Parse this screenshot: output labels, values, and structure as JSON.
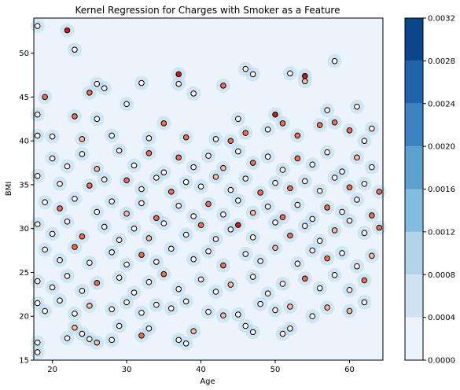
{
  "chart_data": {
    "type": "scatter",
    "title": "Kernel Regression for Charges with Smoker as a Feature",
    "xlabel": "Age",
    "ylabel": "BMI",
    "xlim": [
      17.5,
      64.5
    ],
    "ylim": [
      15,
      54
    ],
    "xticks": [
      "20",
      "30",
      "40",
      "50",
      "60"
    ],
    "yticks": [
      "15",
      "20",
      "25",
      "30",
      "35",
      "40",
      "45",
      "50"
    ],
    "grid": false,
    "colorbar": {
      "range": [
        0.0,
        0.0032
      ],
      "ticks": [
        "0.0000",
        "0.0004",
        "0.0008",
        "0.0012",
        "0.0016",
        "0.0020",
        "0.0024",
        "0.0028",
        "0.0032"
      ],
      "colors": [
        "#ebf3fc",
        "#d0e2f3",
        "#b1d4e9",
        "#83bcde",
        "#5da1d1",
        "#3a83c0",
        "#1e64aa",
        "#0b4689"
      ]
    },
    "background_color": "#ebf3fc",
    "point_colormap": [
      "#fff5f0",
      "#fcbba1",
      "#fb6a4a",
      "#cb181d"
    ],
    "series": [
      {
        "points": [
          [
            18,
            53.1,
            0.0
          ],
          [
            22,
            52.6,
            0.95
          ],
          [
            23,
            50.4,
            0.0
          ],
          [
            19,
            45.0,
            0.9
          ],
          [
            25,
            45.5,
            0.9
          ],
          [
            26,
            46.5,
            0.0
          ],
          [
            27,
            46.0,
            0.0
          ],
          [
            32,
            46.6,
            0.0
          ],
          [
            37,
            47.6,
            0.95
          ],
          [
            37,
            46.5,
            0.0
          ],
          [
            39,
            45.4,
            0.0
          ],
          [
            43,
            46.3,
            0.9
          ],
          [
            46,
            48.2,
            0.0
          ],
          [
            47,
            47.6,
            0.0
          ],
          [
            52,
            47.7,
            0.0
          ],
          [
            54,
            47.4,
            1.0
          ],
          [
            54,
            46.8,
            0.3
          ],
          [
            58,
            49.1,
            0.0
          ],
          [
            18,
            43.0,
            0.0
          ],
          [
            23,
            42.8,
            0.9
          ],
          [
            26,
            42.5,
            0.0
          ],
          [
            30,
            44.2,
            0.0
          ],
          [
            35,
            42.0,
            0.9
          ],
          [
            45,
            42.5,
            0.0
          ],
          [
            50,
            43.0,
            0.95
          ],
          [
            57,
            43.5,
            0.0
          ],
          [
            61,
            43.9,
            0.0
          ],
          [
            18,
            40.6,
            0.0
          ],
          [
            20,
            40.5,
            0.0
          ],
          [
            24,
            40.2,
            0.4
          ],
          [
            28,
            40.6,
            0.0
          ],
          [
            33,
            40.3,
            0.0
          ],
          [
            38,
            40.4,
            0.9
          ],
          [
            42,
            40.2,
            0.0
          ],
          [
            44,
            40.0,
            0.9
          ],
          [
            46,
            40.9,
            0.9
          ],
          [
            49,
            41.3,
            0.0
          ],
          [
            51,
            42.0,
            0.9
          ],
          [
            53,
            40.6,
            0.9
          ],
          [
            56,
            41.8,
            0.9
          ],
          [
            58,
            42.1,
            0.9
          ],
          [
            60,
            41.2,
            0.9
          ],
          [
            62,
            40.0,
            0.0
          ],
          [
            63,
            41.4,
            0.0
          ],
          [
            20,
            38.0,
            0.0
          ],
          [
            22,
            37.1,
            0.0
          ],
          [
            24,
            38.5,
            0.0
          ],
          [
            26,
            36.8,
            0.4
          ],
          [
            29,
            38.9,
            0.0
          ],
          [
            31,
            37.2,
            0.0
          ],
          [
            33,
            38.6,
            0.9
          ],
          [
            35,
            36.4,
            0.0
          ],
          [
            37,
            38.1,
            0.9
          ],
          [
            39,
            37.0,
            0.0
          ],
          [
            41,
            38.3,
            0.0
          ],
          [
            43,
            36.9,
            0.4
          ],
          [
            45,
            38.8,
            0.0
          ],
          [
            47,
            37.5,
            0.9
          ],
          [
            49,
            38.2,
            0.0
          ],
          [
            51,
            36.7,
            0.0
          ],
          [
            53,
            38.0,
            0.9
          ],
          [
            55,
            37.3,
            0.0
          ],
          [
            57,
            38.7,
            0.0
          ],
          [
            59,
            36.5,
            0.0
          ],
          [
            61,
            38.1,
            0.4
          ],
          [
            63,
            37.0,
            0.0
          ],
          [
            18,
            36.0,
            0.0
          ],
          [
            21,
            35.1,
            0.0
          ],
          [
            25,
            34.9,
            0.9
          ],
          [
            27,
            35.6,
            0.0
          ],
          [
            30,
            35.5,
            0.9
          ],
          [
            32,
            34.5,
            0.0
          ],
          [
            34,
            35.8,
            0.0
          ],
          [
            36,
            34.2,
            0.9
          ],
          [
            38,
            35.3,
            0.0
          ],
          [
            40,
            34.8,
            0.0
          ],
          [
            42,
            35.9,
            0.4
          ],
          [
            44,
            34.4,
            0.0
          ],
          [
            46,
            35.7,
            0.0
          ],
          [
            48,
            34.1,
            0.9
          ],
          [
            50,
            35.2,
            0.0
          ],
          [
            52,
            34.6,
            0.9
          ],
          [
            54,
            35.4,
            0.0
          ],
          [
            56,
            34.3,
            0.0
          ],
          [
            58,
            35.8,
            0.0
          ],
          [
            60,
            34.7,
            0.9
          ],
          [
            62,
            35.1,
            0.0
          ],
          [
            64,
            34.2,
            0.9
          ],
          [
            19,
            33.0,
            0.0
          ],
          [
            21,
            32.3,
            0.9
          ],
          [
            23,
            33.4,
            0.0
          ],
          [
            26,
            31.9,
            0.0
          ],
          [
            28,
            33.1,
            0.0
          ],
          [
            30,
            31.7,
            0.4
          ],
          [
            32,
            32.9,
            0.0
          ],
          [
            34,
            31.2,
            0.9
          ],
          [
            37,
            32.6,
            0.0
          ],
          [
            39,
            31.4,
            0.0
          ],
          [
            41,
            32.8,
            0.9
          ],
          [
            43,
            31.6,
            0.0
          ],
          [
            45,
            33.2,
            0.0
          ],
          [
            47,
            31.8,
            0.4
          ],
          [
            49,
            32.5,
            0.0
          ],
          [
            51,
            31.3,
            0.9
          ],
          [
            53,
            32.7,
            0.0
          ],
          [
            55,
            31.1,
            0.0
          ],
          [
            57,
            32.4,
            0.9
          ],
          [
            59,
            31.9,
            0.0
          ],
          [
            61,
            33.3,
            0.0
          ],
          [
            63,
            31.5,
            0.9
          ],
          [
            18,
            30.5,
            0.0
          ],
          [
            20,
            29.4,
            0.0
          ],
          [
            22,
            30.8,
            0.0
          ],
          [
            24,
            29.1,
            0.9
          ],
          [
            27,
            30.2,
            0.0
          ],
          [
            29,
            28.7,
            0.0
          ],
          [
            31,
            30.0,
            0.0
          ],
          [
            33,
            28.9,
            0.4
          ],
          [
            35,
            30.6,
            0.0
          ],
          [
            38,
            29.3,
            0.0
          ],
          [
            40,
            30.4,
            0.9
          ],
          [
            42,
            28.8,
            0.0
          ],
          [
            44,
            29.9,
            0.0
          ],
          [
            45,
            30.4,
            1.0
          ],
          [
            47,
            29.0,
            0.0
          ],
          [
            50,
            30.7,
            0.0
          ],
          [
            52,
            29.2,
            0.9
          ],
          [
            54,
            30.3,
            0.0
          ],
          [
            56,
            28.6,
            0.0
          ],
          [
            58,
            29.8,
            0.4
          ],
          [
            60,
            30.9,
            0.0
          ],
          [
            62,
            29.5,
            0.0
          ],
          [
            64,
            30.1,
            0.9
          ],
          [
            19,
            27.6,
            0.0
          ],
          [
            21,
            26.4,
            0.0
          ],
          [
            23,
            27.9,
            0.9
          ],
          [
            25,
            26.1,
            0.0
          ],
          [
            28,
            27.3,
            0.0
          ],
          [
            30,
            25.9,
            0.0
          ],
          [
            32,
            27.0,
            0.9
          ],
          [
            34,
            26.2,
            0.0
          ],
          [
            36,
            27.7,
            0.0
          ],
          [
            39,
            26.5,
            0.0
          ],
          [
            41,
            27.4,
            0.0
          ],
          [
            43,
            25.8,
            0.9
          ],
          [
            46,
            27.1,
            0.0
          ],
          [
            48,
            26.3,
            0.0
          ],
          [
            50,
            27.8,
            0.4
          ],
          [
            53,
            26.0,
            0.0
          ],
          [
            55,
            27.5,
            0.0
          ],
          [
            57,
            26.6,
            0.9
          ],
          [
            59,
            27.2,
            0.0
          ],
          [
            61,
            25.7,
            0.0
          ],
          [
            63,
            26.9,
            0.4
          ],
          [
            18,
            24.0,
            0.0
          ],
          [
            20,
            23.3,
            0.0
          ],
          [
            22,
            24.6,
            0.0
          ],
          [
            24,
            22.9,
            0.0
          ],
          [
            26,
            23.8,
            0.9
          ],
          [
            29,
            24.4,
            0.0
          ],
          [
            31,
            22.7,
            0.0
          ],
          [
            33,
            23.9,
            0.0
          ],
          [
            35,
            24.8,
            0.9
          ],
          [
            37,
            23.1,
            0.0
          ],
          [
            40,
            24.2,
            0.0
          ],
          [
            42,
            22.8,
            0.0
          ],
          [
            44,
            23.6,
            0.4
          ],
          [
            47,
            24.5,
            0.0
          ],
          [
            49,
            22.6,
            0.0
          ],
          [
            51,
            23.7,
            0.0
          ],
          [
            54,
            24.3,
            0.9
          ],
          [
            56,
            23.2,
            0.0
          ],
          [
            58,
            24.7,
            0.0
          ],
          [
            60,
            23.0,
            0.0
          ],
          [
            62,
            24.1,
            0.9
          ],
          [
            18,
            21.5,
            0.0
          ],
          [
            19,
            20.6,
            0.0
          ],
          [
            21,
            21.8,
            0.0
          ],
          [
            23,
            20.3,
            0.0
          ],
          [
            25,
            21.2,
            0.4
          ],
          [
            28,
            20.8,
            0.0
          ],
          [
            30,
            21.6,
            0.0
          ],
          [
            32,
            20.4,
            0.0
          ],
          [
            34,
            21.3,
            0.0
          ],
          [
            36,
            20.9,
            0.0
          ],
          [
            38,
            21.7,
            0.0
          ],
          [
            41,
            20.5,
            0.0
          ],
          [
            43,
            20.1,
            0.4
          ],
          [
            45,
            20.2,
            0.0
          ],
          [
            48,
            21.4,
            0.0
          ],
          [
            50,
            20.7,
            0.0
          ],
          [
            52,
            21.1,
            0.4
          ],
          [
            55,
            20.0,
            0.0
          ],
          [
            57,
            21.0,
            0.4
          ],
          [
            60,
            20.6,
            0.4
          ],
          [
            62,
            21.6,
            0.0
          ],
          [
            23,
            18.7,
            0.4
          ],
          [
            24,
            18.0,
            0.0
          ],
          [
            29,
            18.9,
            0.0
          ],
          [
            32,
            17.8,
            0.9
          ],
          [
            33,
            18.6,
            0.0
          ],
          [
            37,
            17.3,
            0.0
          ],
          [
            38,
            16.9,
            0.0
          ],
          [
            39,
            18.3,
            0.4
          ],
          [
            46,
            18.9,
            0.0
          ],
          [
            47,
            18.2,
            0.0
          ],
          [
            51,
            18.0,
            0.0
          ],
          [
            52,
            18.6,
            0.0
          ],
          [
            18,
            17.0,
            0.0
          ],
          [
            18,
            15.9,
            0.0
          ],
          [
            22,
            17.5,
            0.0
          ],
          [
            25,
            17.4,
            0.0
          ],
          [
            26,
            17.0,
            0.4
          ],
          [
            28,
            17.3,
            0.0
          ]
        ]
      }
    ]
  }
}
